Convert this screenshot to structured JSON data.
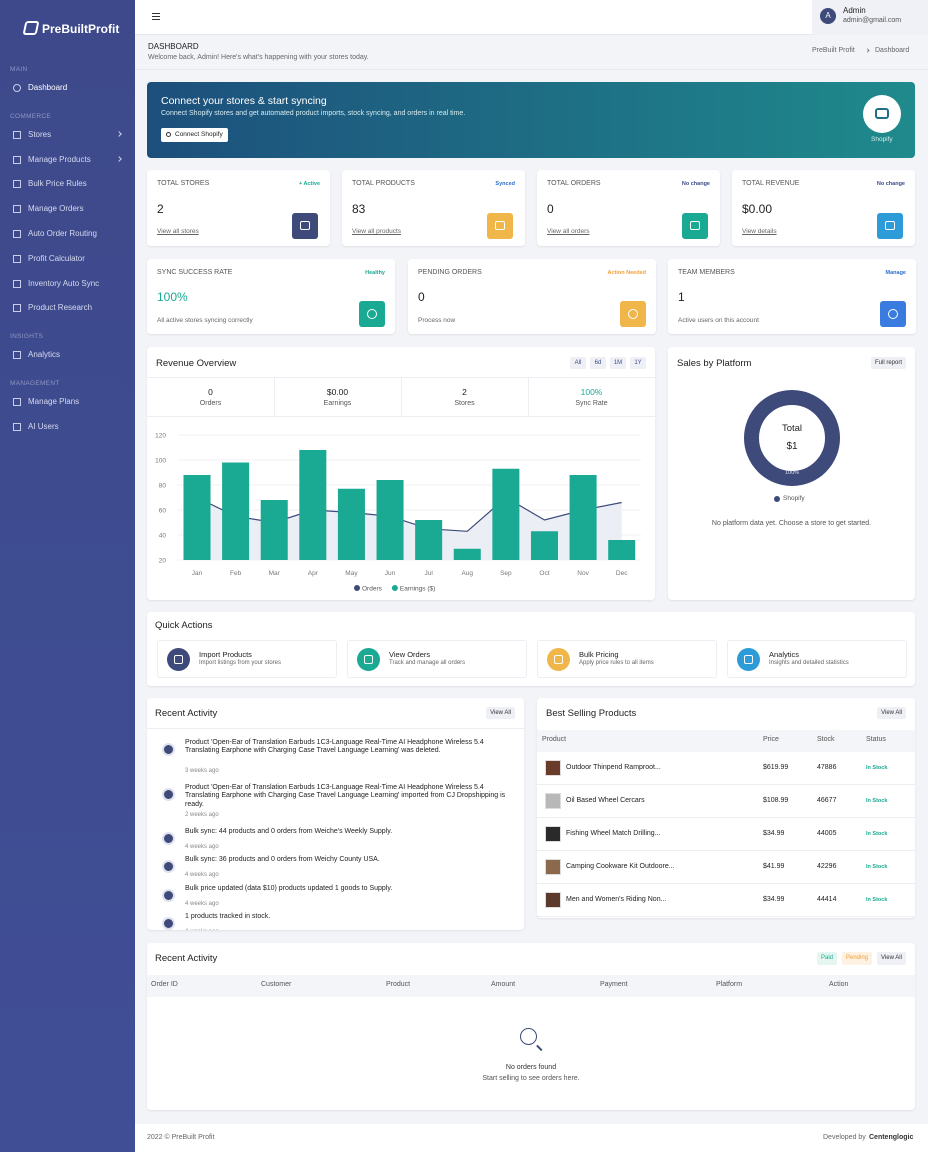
{
  "sidebar": {
    "brand": "PreBuiltProfit",
    "sections": [
      {
        "title": "MAIN",
        "items": [
          "Dashboard"
        ]
      },
      {
        "title": "COMMERCE",
        "items": [
          "Stores",
          "Manage Products",
          "Bulk Price Rules",
          "Manage Orders",
          "Auto Order Routing",
          "Profit Calculator",
          "Inventory Auto Sync",
          "Product Research"
        ]
      },
      {
        "title": "INSIGHTS",
        "items": [
          "Analytics"
        ]
      },
      {
        "title": "MANAGEMENT",
        "items": [
          "Manage Plans",
          "AI Users"
        ]
      }
    ]
  },
  "header": {
    "avatar": "A",
    "user_name": "Admin",
    "user_email": "admin@gmail.com"
  },
  "page": {
    "title": "DASHBOARD",
    "subtitle": "Welcome back, Admin! Here's what's happening with your stores today.",
    "breadcrumb": [
      "PreBuilt Profit",
      "Dashboard"
    ]
  },
  "banner": {
    "title": "Connect your stores & start syncing",
    "text": "Connect Shopify stores and get automated product imports, stock syncing, and orders in real time.",
    "button": "Connect Shopify",
    "badge": "Shopify"
  },
  "stats": [
    {
      "label": "TOTAL STORES",
      "tag": "+ Active",
      "value": "2",
      "link": "View all stores"
    },
    {
      "label": "TOTAL PRODUCTS",
      "tag": "Synced",
      "value": "83",
      "link": "View all products"
    },
    {
      "label": "TOTAL ORDERS",
      "tag": "No change",
      "value": "0",
      "link": "View all orders"
    },
    {
      "label": "TOTAL REVENUE",
      "tag": "No change",
      "value": "$0.00",
      "link": "View details"
    }
  ],
  "stats2": [
    {
      "label": "SYNC SUCCESS RATE",
      "tag": "Healthy",
      "value": "100%",
      "link": "All active stores syncing correctly"
    },
    {
      "label": "PENDING ORDERS",
      "tag": "Action Needed",
      "value": "0",
      "link": "Process now"
    },
    {
      "label": "TEAM MEMBERS",
      "tag": "Manage",
      "value": "1",
      "link": "Active users on this account"
    }
  ],
  "revenue": {
    "title": "Revenue Overview",
    "ranges": [
      "All",
      "6d",
      "1M",
      "1Y"
    ],
    "summary": [
      {
        "value": "0",
        "label": "Orders"
      },
      {
        "value": "$0.00",
        "label": "Earnings"
      },
      {
        "value": "2",
        "label": "Stores"
      },
      {
        "value": "100%",
        "label": "Sync Rate"
      }
    ],
    "chart": {
      "type": "bar",
      "categories": [
        "Jan",
        "Feb",
        "Mar",
        "Apr",
        "May",
        "Jun",
        "Jul",
        "Aug",
        "Sep",
        "Oct",
        "Nov",
        "Dec"
      ],
      "series": [
        {
          "name": "Orders",
          "type": "line",
          "color": "#3d4a7a",
          "values": [
            70,
            55,
            50,
            60,
            58,
            55,
            45,
            43,
            70,
            52,
            60,
            66
          ]
        },
        {
          "name": "Earnings ($)",
          "type": "bar",
          "color": "#1aa992",
          "values": [
            88,
            98,
            68,
            108,
            77,
            84,
            52,
            29,
            93,
            43,
            88,
            36
          ]
        }
      ],
      "ylim": [
        20,
        120
      ],
      "yticks": [
        20,
        40,
        60,
        80,
        100,
        120
      ]
    }
  },
  "platform": {
    "title": "Sales by Platform",
    "button": "Full report",
    "center_label": "Total",
    "center_value": "$1",
    "ring_label": "100%",
    "legend": "Shopify",
    "note": "No platform data yet. Choose a store to get started."
  },
  "quick_actions": {
    "title": "Quick Actions",
    "items": [
      {
        "title": "Import Products",
        "text": "Import listings from your stores"
      },
      {
        "title": "View Orders",
        "text": "Track and manage all orders"
      },
      {
        "title": "Bulk Pricing",
        "text": "Apply price rules to all items"
      },
      {
        "title": "Analytics",
        "text": "Insights and detailed statistics"
      }
    ]
  },
  "activity": {
    "title": "Recent Activity",
    "button": "View All",
    "items": [
      {
        "text": "Product 'Open-Ear of Translation Earbuds 1C3-Language Real-Time AI Headphone Wireless 5.4 Translating Earphone with Charging Case Travel Language Learning' was deleted.",
        "time": "3 weeks ago"
      },
      {
        "text": "Product 'Open-Ear of Translation Earbuds 1C3-Language Real-Time AI Headphone Wireless 5.4 Translating Earphone with Charging Case Travel Language Learning' imported from CJ Dropshipping is ready.",
        "time": "2 weeks ago"
      },
      {
        "text": "Bulk sync: 44 products and 0 orders from Weiche's Weekly Supply.",
        "time": "4 weeks ago"
      },
      {
        "text": "Bulk sync: 36 products and 0 orders from Weichy County USA.",
        "time": "4 weeks ago"
      },
      {
        "text": "Bulk price updated (data $10) products updated 1 goods to Supply.",
        "time": "4 weeks ago"
      },
      {
        "text": "1 products tracked in stock.",
        "time": "4 weeks ago"
      }
    ]
  },
  "best_selling": {
    "title": "Best Selling Products",
    "button": "View All",
    "columns": [
      "Product",
      "Price",
      "Stock",
      "Status"
    ],
    "rows": [
      [
        "Outdoor Thinpend Ramproot...",
        "$619.99",
        47886,
        "In Stock"
      ],
      [
        "Oil Based Wheel Cercars",
        "$108.99",
        46677,
        "In Stock"
      ],
      [
        "Fishing Wheel Match Drilling...",
        "$34.99",
        44005,
        "In Stock"
      ],
      [
        "Camping Cookware Kit Outdoore...",
        "$41.99",
        42296,
        "In Stock"
      ],
      [
        "Men and Women's Riding Non...",
        "$34.99",
        44414,
        "In Stock"
      ]
    ]
  },
  "orders": {
    "title": "Recent Activity",
    "filters": [
      "Paid",
      "Pending",
      "View All"
    ],
    "columns": [
      "Order ID",
      "Customer",
      "Product",
      "Amount",
      "Payment",
      "Platform",
      "Action"
    ],
    "empty_title": "No orders found",
    "empty_text": "Start selling to see orders here."
  },
  "footer": {
    "copyright": "2022 © PreBuilt Profit",
    "developed_by": "Developed by",
    "company": "Centenglogic"
  }
}
